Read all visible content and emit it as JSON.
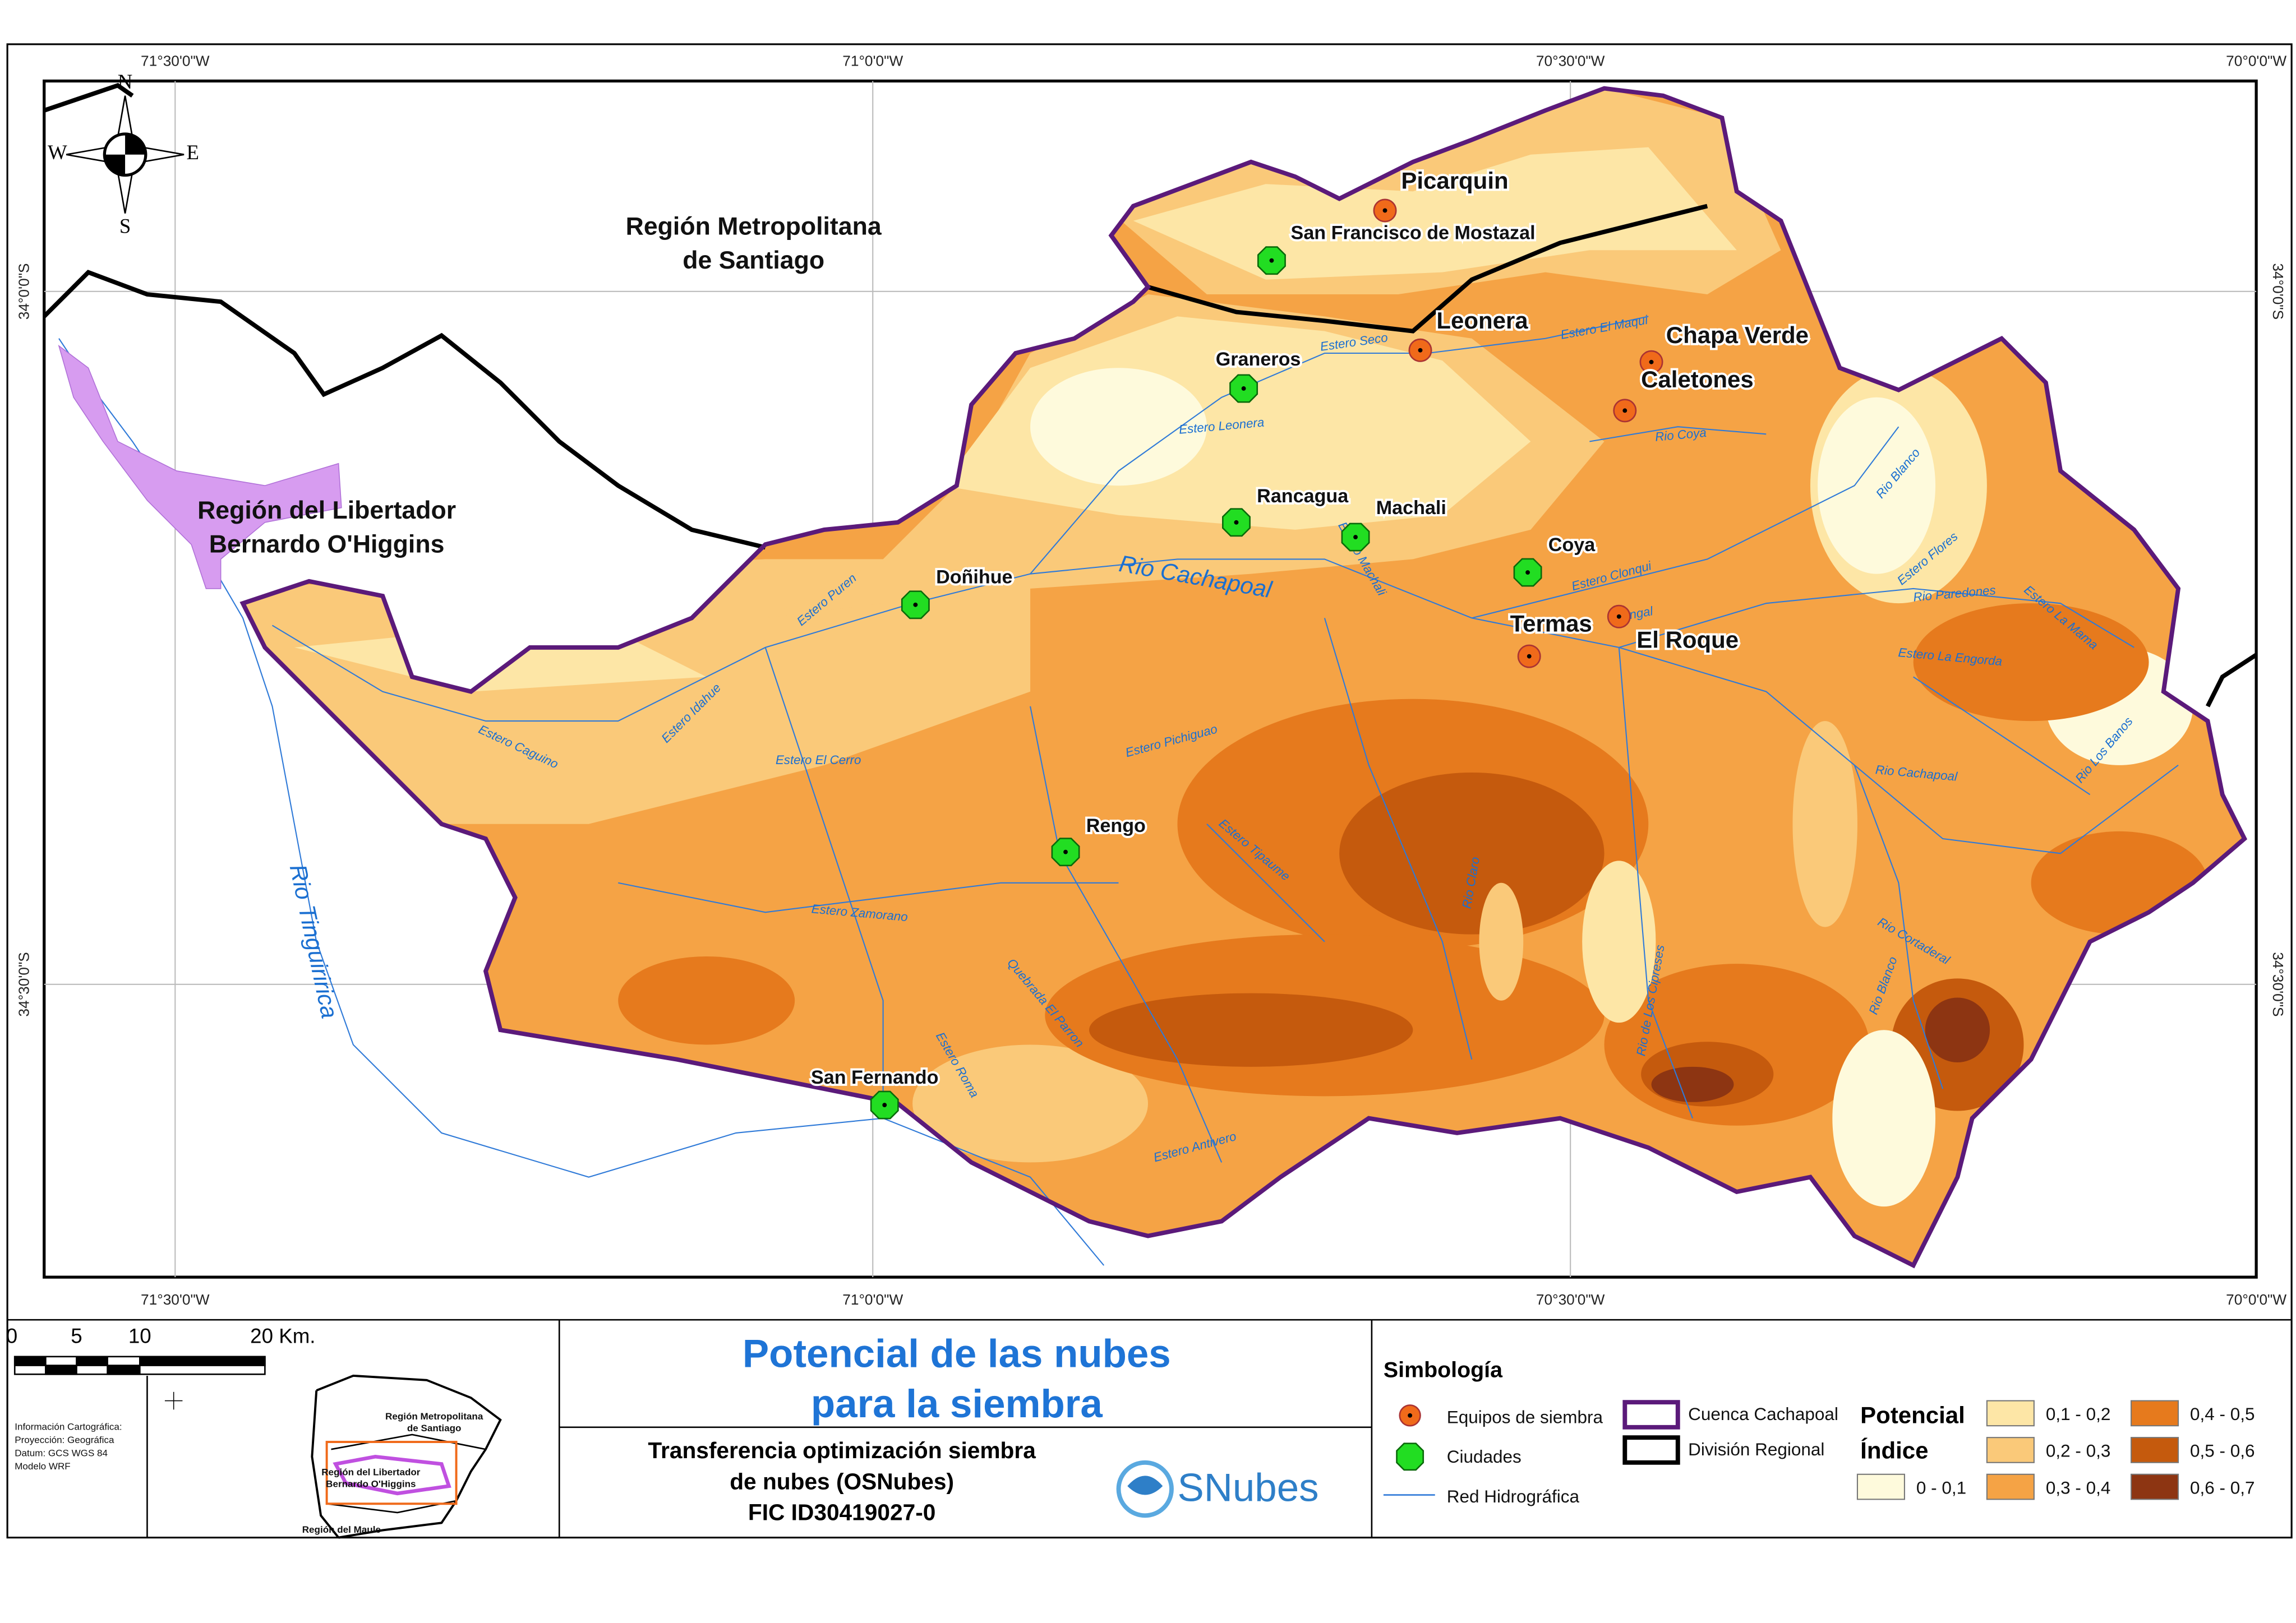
{
  "map": {
    "coordinates": {
      "longitudes": [
        "71°30'0\"W",
        "71°0'0\"W",
        "70°30'0\"W",
        "70°0'0\"W"
      ],
      "latitudes": [
        "34°0'0\"S",
        "34°30'0\"S"
      ]
    },
    "compass": {
      "north": "N",
      "south": "S",
      "west": "W",
      "east": "E"
    },
    "regions": [
      [
        "Región Metropolitana",
        "de Santiago"
      ],
      [
        "Región del Libertador",
        "Bernardo O'Higgins"
      ]
    ],
    "equipment_sites": [
      "Picarquin",
      "Leonera",
      "Chapa Verde",
      "Caletones",
      "El Roque",
      "Termas"
    ],
    "cities": [
      "San Francisco de Mostazal",
      "Graneros",
      "Rancagua",
      "Machali",
      "Coya",
      "Doñihue",
      "Rengo",
      "San Fernando"
    ],
    "rivers": [
      "Rio Cachapoal",
      "Rio Tinguiririca",
      "Estero Seco",
      "Estero Leonera",
      "Estero El Maqui",
      "Rio Coya",
      "Rio Blanco",
      "Estero Flores",
      "Rio Paredones",
      "Estero La Mama",
      "Estero La Engorda",
      "Estero Clonqui",
      "Pangal",
      "Estero Machali",
      "Estero Puren",
      "Estero Idahue",
      "Estero Caguino",
      "Estero El Cerro",
      "Estero Pichiguao",
      "Estero Zamorano",
      "Estero Tipaume",
      "Estero Antivero",
      "Estero Roma",
      "Quebrada El Parron",
      "Rio Cachapoal",
      "Rio Los Banos",
      "Rio Cortaderal",
      "Rio Blanco",
      "Rio de Los Cipreses",
      "Rio Claro"
    ]
  },
  "scale_bar": {
    "labels": [
      0,
      5,
      10,
      "20 Km."
    ]
  },
  "inset": {
    "info": [
      "Información Cartográfica:",
      "Proyección: Geográfica",
      "Datum: GCS WGS 84",
      "Modelo WRF"
    ],
    "regions": [
      "Región Metropolitana",
      "de Santiago",
      "Región del Libertador",
      "Bernardo O'Higgins",
      "Región del Maule"
    ]
  },
  "title": [
    "Potencial de las nubes",
    "para la siembra"
  ],
  "project": [
    "Transferencia optimización siembra",
    "de nubes (OSNubes)",
    "FIC ID30419027-0"
  ],
  "logo": "SNubes",
  "legend": {
    "title": "Simbología",
    "items": [
      "Equipos de siembra",
      "Ciudades",
      "Red Hidrográfica",
      "Cuenca Cachapoal",
      "División Regional"
    ],
    "potencial": {
      "title": "Potencial",
      "subtitle": "Índice",
      "classes": [
        {
          "label": "0 - 0,1",
          "color": "#fefadc"
        },
        {
          "label": "0,1 - 0,2",
          "color": "#fde6a6"
        },
        {
          "label": "0,2 - 0,3",
          "color": "#fac979"
        },
        {
          "label": "0,3 - 0,4",
          "color": "#f5a345"
        },
        {
          "label": "0,4 - 0,5",
          "color": "#e67a1d"
        },
        {
          "label": "0,5 - 0,6",
          "color": "#c55a0d"
        },
        {
          "label": "0,6 - 0,7",
          "color": "#8d3512"
        }
      ]
    }
  }
}
